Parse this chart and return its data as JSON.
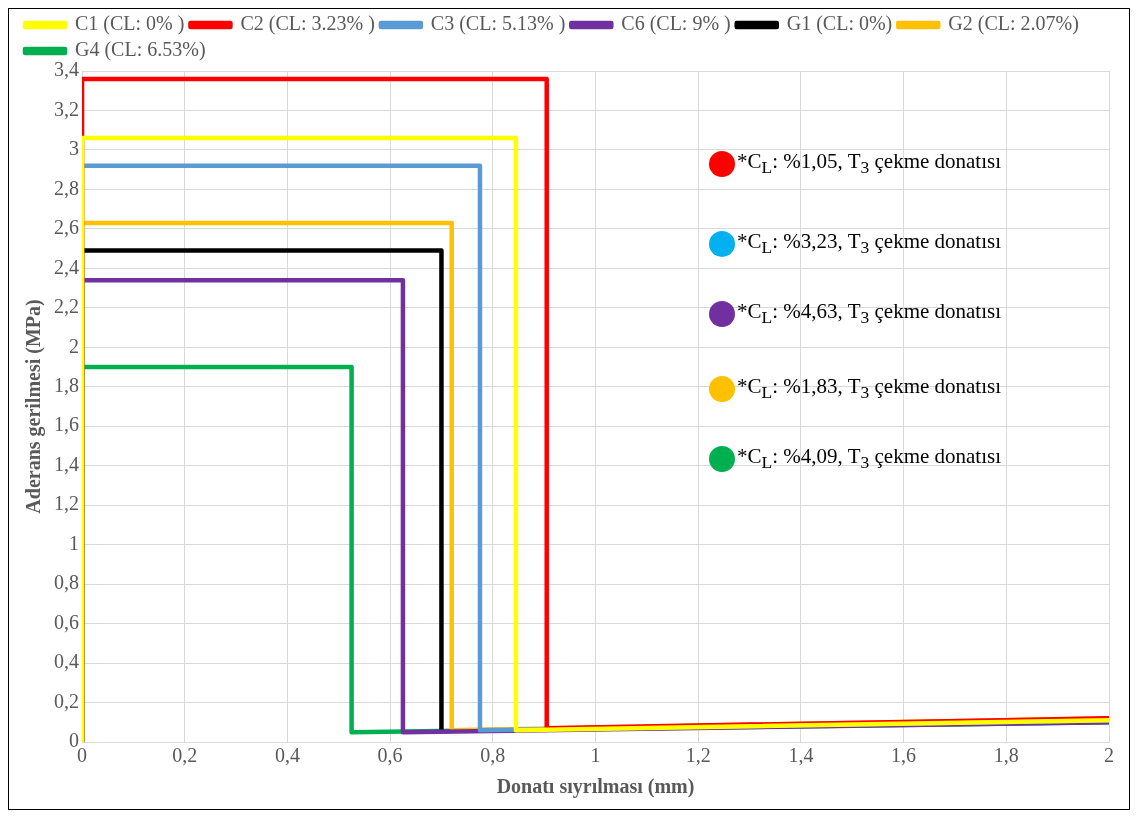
{
  "chart_data": {
    "type": "line",
    "xlabel": "Donatı sıyrılması (mm)",
    "ylabel": "Aderans gerilmesi (MPa)",
    "xlim": [
      0,
      2
    ],
    "xticks": [
      0,
      {
        "value": 0.2,
        "label": "0,2"
      },
      {
        "value": 0.4,
        "label": "0,4"
      },
      {
        "value": 0.6,
        "label": "0,6"
      },
      {
        "value": 0.8,
        "label": "0,8"
      },
      1,
      {
        "value": 1.2,
        "label": "1,2"
      },
      {
        "value": 1.4,
        "label": "1,4"
      },
      {
        "value": 1.6,
        "label": "1,6"
      },
      {
        "value": 1.8,
        "label": "1,8"
      },
      2
    ],
    "ylim": [
      0,
      3.4
    ],
    "yticks": [
      0,
      {
        "value": 0.2,
        "label": "0,2"
      },
      {
        "value": 0.4,
        "label": "0,4"
      },
      {
        "value": 0.6,
        "label": "0,6"
      },
      {
        "value": 0.8,
        "label": "0,8"
      },
      1,
      {
        "value": 1.2,
        "label": "1,2"
      },
      {
        "value": 1.4,
        "label": "1,4"
      },
      {
        "value": 1.6,
        "label": "1,6"
      },
      {
        "value": 1.8,
        "label": "1,8"
      },
      2,
      {
        "value": 2.2,
        "label": "2,2"
      },
      {
        "value": 2.4,
        "label": "2,4"
      },
      {
        "value": 2.6,
        "label": "2,6"
      },
      {
        "value": 2.8,
        "label": "2,8"
      },
      3,
      {
        "value": 3.2,
        "label": "3,2"
      },
      {
        "value": 3.4,
        "label": "3,4"
      }
    ],
    "grid": true,
    "legend": "top",
    "marker": "none",
    "line_style": "solid",
    "series": [
      {
        "name": "C1 (CL: 0% )",
        "color": "#ffff00",
        "x": [
          0,
          0,
          0.845,
          0.845,
          2
        ],
        "values": [
          0,
          3.06,
          3.06,
          0.06,
          0.11
        ]
      },
      {
        "name": "C2 (CL: 3.23% )",
        "color": "#ff0000",
        "x": [
          0,
          0,
          0.905,
          0.905,
          2
        ],
        "values": [
          0,
          3.36,
          3.36,
          0.07,
          0.12
        ]
      },
      {
        "name": "C3 (CL: 5.13% )",
        "color": "#5b9bd5",
        "x": [
          0,
          0,
          0.775,
          0.775,
          2
        ],
        "values": [
          0,
          2.92,
          2.92,
          0.06,
          0.11
        ]
      },
      {
        "name": "C6 (CL: 9% )",
        "color": "#7030a0",
        "x": [
          0,
          0,
          0.625,
          0.625,
          2
        ],
        "values": [
          0,
          2.34,
          2.34,
          0.05,
          0.1
        ]
      },
      {
        "name": "G1 (CL: 0%)",
        "color": "#000000",
        "x": [
          0,
          0,
          0.7,
          0.7
        ],
        "values": [
          0,
          2.49,
          2.49,
          0.06
        ]
      },
      {
        "name": "G2 (CL: 2.07%)",
        "color": "#ffc000",
        "x": [
          0,
          0,
          0.72,
          0.72,
          2
        ],
        "values": [
          0,
          2.63,
          2.63,
          0.06,
          0.12
        ]
      },
      {
        "name": "G4 (CL: 6.53%)",
        "color": "#00b050",
        "x": [
          0,
          0,
          0.525,
          0.525,
          2
        ],
        "values": [
          0,
          1.9,
          1.9,
          0.05,
          0.1
        ]
      }
    ],
    "annotations": [
      "*C$_{L}$: %1,05, T$_{3}$ çekme donatısı",
      "*C$_{L}$: %3,23, T$_{3}$ çekme donatısı",
      "*C$_{L}$: %4,63, T$_{3}$ çekme donatısı",
      "*C$_{L}$: %1,83, T$_{3}$ çekme donatısı",
      "*C$_{L}$: %4,09, T$_{3}$ çekme donatısı"
    ]
  }
}
